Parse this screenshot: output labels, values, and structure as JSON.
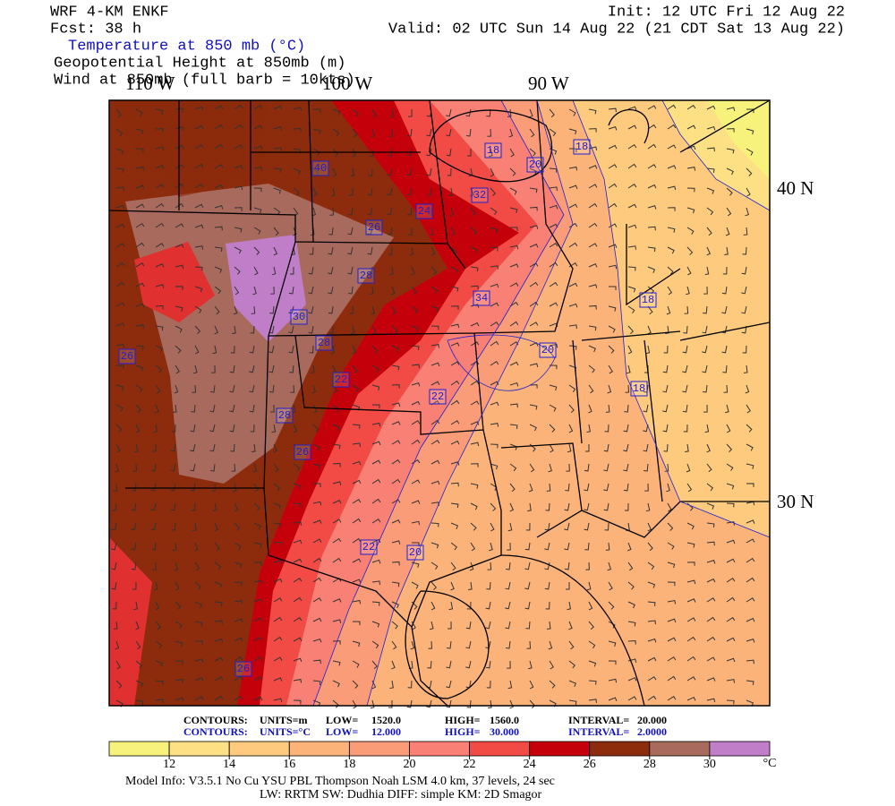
{
  "header": {
    "model": "WRF 4-KM ENKF",
    "forecast": "Fcst:   38 h",
    "init": "Init: 12 UTC Fri 12 Aug 22",
    "valid": "Valid: 02 UTC Sun 14 Aug 22 (21 CDT Sat 13 Aug 22)",
    "fields": [
      "Temperature at 850 mb (°C)",
      "Geopotential Height at 850mb (m)",
      "Wind at 850mb (full barb = 10kts)"
    ]
  },
  "map": {
    "longitude_labels": [
      "110 W",
      "100 W",
      "90 W"
    ],
    "latitude_labels": [
      "40 N",
      "30 N"
    ],
    "contour_labels": [
      "18",
      "20",
      "18",
      "40",
      "32",
      "24",
      "26",
      "28",
      "30",
      "28",
      "34",
      "18",
      "20",
      "22",
      "18",
      "22",
      "28",
      "26",
      "22",
      "20",
      "26",
      "26"
    ]
  },
  "footer": {
    "height_contours": [
      "CONTOURS:",
      "UNITS=m",
      "LOW=",
      "1520.0",
      "HIGH=",
      "1560.0",
      "INTERVAL=",
      "20.000"
    ],
    "temperature_contours": [
      "CONTOURS:",
      "UNITS=°C",
      "LOW=",
      "12.000",
      "HIGH=",
      "30.000",
      "INTERVAL=",
      "2.0000"
    ],
    "model_info": "Model Info: V3.5.1    No Cu    YSU PBL  Thompson     Noah LSM  4.0 km,  37 levels,    24 sec",
    "physics": "LW: RRTM  SW: Dudhia  DIFF: simple  KM: 2D Smagor"
  },
  "colorbar": {
    "ticks": [
      12,
      14,
      16,
      18,
      20,
      22,
      24,
      26,
      28,
      30
    ],
    "unit": "°C",
    "colors": [
      "#f6f27c",
      "#fde083",
      "#fdca7e",
      "#fbb37a",
      "#fa9c78",
      "#f88074",
      "#f24a44",
      "#c4000a",
      "#8c2c0c",
      "#a86a5c",
      "#c07ec8"
    ]
  }
}
